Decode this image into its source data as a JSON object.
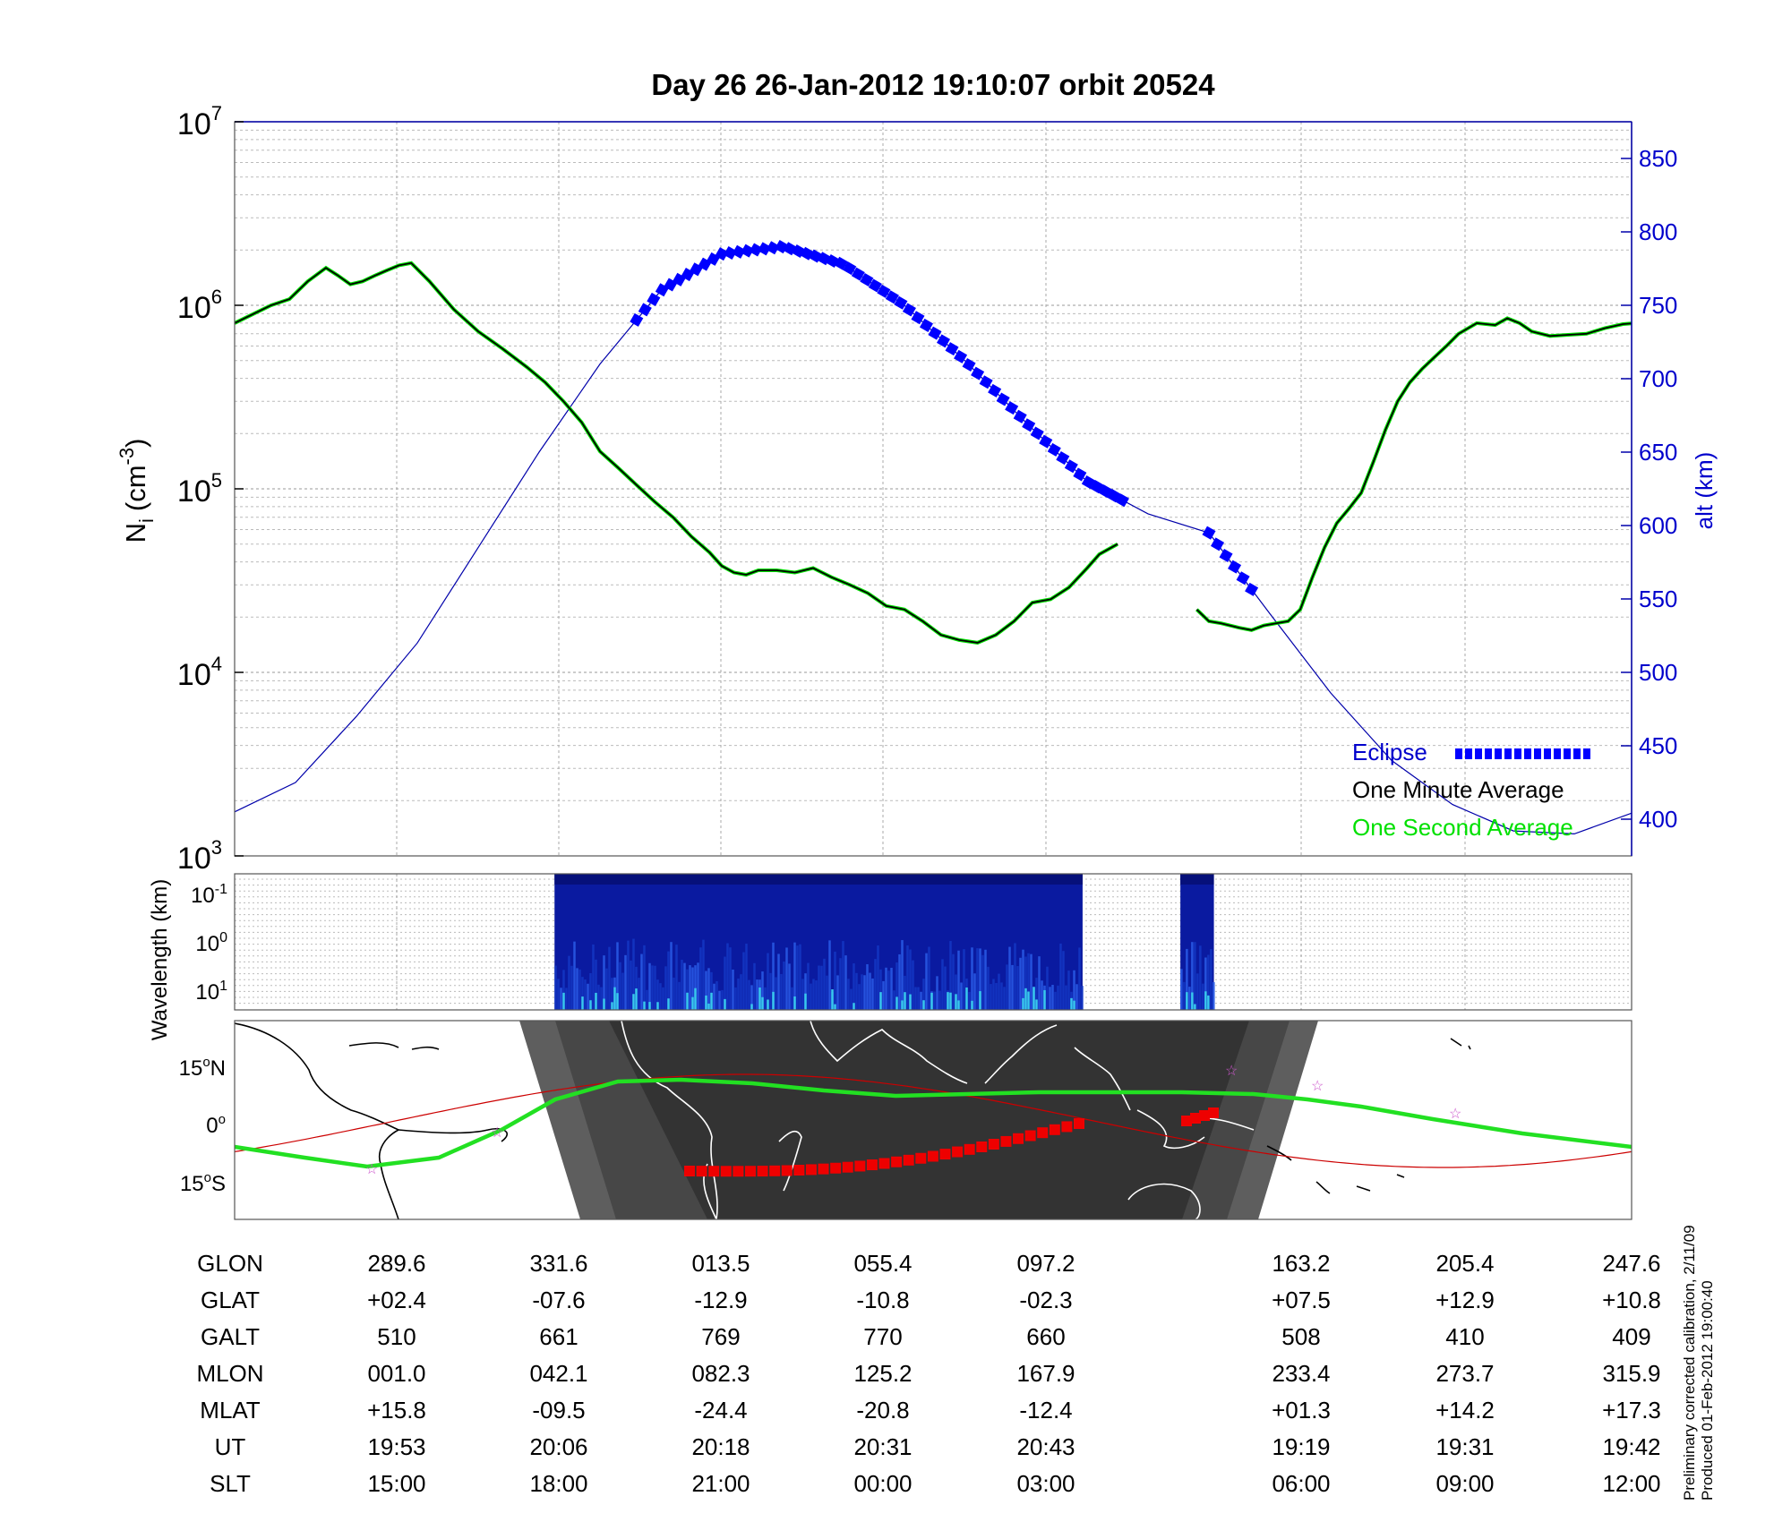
{
  "title": "Day 26  26-Jan-2012 19:10:07   orbit 20524",
  "chart_data": [
    {
      "type": "line",
      "panel": "ion density",
      "ylabel": "N_i (cm^-3)",
      "ylabel_parts": {
        "base": "N",
        "sub": "i",
        "unit": "(cm",
        "sup": "-3",
        "close": ")"
      },
      "yscale": "log",
      "ylim": [
        1000,
        10000000
      ],
      "y_ticks": [
        {
          "base": "10",
          "exp": "3"
        },
        {
          "base": "10",
          "exp": "4"
        },
        {
          "base": "10",
          "exp": "5"
        },
        {
          "base": "10",
          "exp": "6"
        },
        {
          "base": "10",
          "exp": "7"
        }
      ],
      "y2label": "alt (km)",
      "y2lim": [
        375,
        875
      ],
      "y2_ticks": [
        "400",
        "450",
        "500",
        "550",
        "600",
        "650",
        "700",
        "750",
        "800",
        "850"
      ],
      "x": "orbit fraction 0..1",
      "series": [
        {
          "name": "One Minute Average",
          "color": "#000000",
          "segments": [
            [
              [
                0.0,
                800000
              ],
              [
                0.03,
                1000000
              ],
              [
                0.045,
                1080000
              ],
              [
                0.06,
                1350000
              ],
              [
                0.075,
                1600000
              ],
              [
                0.085,
                1450000
              ],
              [
                0.095,
                1300000
              ],
              [
                0.105,
                1350000
              ],
              [
                0.115,
                1450000
              ],
              [
                0.125,
                1550000
              ],
              [
                0.135,
                1650000
              ],
              [
                0.145,
                1700000
              ],
              [
                0.16,
                1350000
              ],
              [
                0.18,
                950000
              ],
              [
                0.2,
                720000
              ],
              [
                0.22,
                580000
              ],
              [
                0.24,
                460000
              ],
              [
                0.255,
                380000
              ],
              [
                0.27,
                300000
              ],
              [
                0.285,
                230000
              ],
              [
                0.3,
                160000
              ],
              [
                0.315,
                130000
              ],
              [
                0.33,
                105000
              ],
              [
                0.345,
                85000
              ],
              [
                0.36,
                70000
              ],
              [
                0.375,
                55000
              ],
              [
                0.39,
                45000
              ],
              [
                0.4,
                38000
              ],
              [
                0.41,
                35000
              ],
              [
                0.42,
                34000
              ],
              [
                0.43,
                36000
              ],
              [
                0.445,
                36000
              ],
              [
                0.46,
                35000
              ],
              [
                0.475,
                37000
              ],
              [
                0.49,
                33000
              ],
              [
                0.505,
                30000
              ],
              [
                0.52,
                27000
              ],
              [
                0.535,
                23000
              ],
              [
                0.55,
                22000
              ],
              [
                0.565,
                19000
              ],
              [
                0.58,
                16000
              ],
              [
                0.595,
                15000
              ],
              [
                0.61,
                14500
              ],
              [
                0.625,
                16000
              ],
              [
                0.64,
                19000
              ],
              [
                0.655,
                24000
              ],
              [
                0.67,
                25000
              ],
              [
                0.685,
                29000
              ],
              [
                0.7,
                37000
              ],
              [
                0.71,
                44000
              ],
              [
                0.725,
                50000
              ]
            ],
            [
              [
                0.79,
                22000
              ],
              [
                0.8,
                19000
              ],
              [
                0.81,
                18500
              ],
              [
                0.825,
                17500
              ],
              [
                0.835,
                17000
              ],
              [
                0.845,
                18000
              ],
              [
                0.855,
                18500
              ],
              [
                0.865,
                19000
              ],
              [
                0.875,
                22000
              ],
              [
                0.885,
                33000
              ],
              [
                0.895,
                48000
              ],
              [
                0.905,
                65000
              ],
              [
                0.915,
                78000
              ],
              [
                0.925,
                95000
              ],
              [
                0.935,
                140000
              ],
              [
                0.945,
                210000
              ],
              [
                0.955,
                300000
              ],
              [
                0.965,
                380000
              ],
              [
                0.975,
                450000
              ],
              [
                0.985,
                520000
              ],
              [
                0.995,
                600000
              ],
              [
                1.005,
                700000
              ],
              [
                1.02,
                800000
              ],
              [
                1.035,
                780000
              ],
              [
                1.045,
                850000
              ],
              [
                1.055,
                800000
              ],
              [
                1.065,
                720000
              ],
              [
                1.08,
                680000
              ],
              [
                1.095,
                690000
              ],
              [
                1.11,
                700000
              ],
              [
                1.125,
                750000
              ],
              [
                1.14,
                790000
              ],
              [
                1.15,
                800000
              ]
            ]
          ]
        },
        {
          "name": "One Second Average",
          "color": "#00e000"
        }
      ],
      "altitude": {
        "color": "#0000aa",
        "points": [
          [
            0.0,
            405
          ],
          [
            0.05,
            425
          ],
          [
            0.1,
            470
          ],
          [
            0.15,
            520
          ],
          [
            0.2,
            585
          ],
          [
            0.25,
            650
          ],
          [
            0.3,
            710
          ],
          [
            0.35,
            760
          ],
          [
            0.4,
            785
          ],
          [
            0.45,
            790
          ],
          [
            0.5,
            778
          ],
          [
            0.55,
            750
          ],
          [
            0.6,
            712
          ],
          [
            0.65,
            670
          ],
          [
            0.7,
            630
          ],
          [
            0.75,
            608
          ],
          [
            0.8,
            595
          ],
          [
            0.85,
            540
          ],
          [
            0.9,
            486
          ],
          [
            0.95,
            440
          ],
          [
            1.0,
            410
          ],
          [
            1.05,
            392
          ],
          [
            1.1,
            390
          ],
          [
            1.15,
            405
          ]
        ]
      },
      "eclipse": {
        "name": "Eclipse",
        "color": "#0000ff",
        "ranges": [
          [
            0.33,
            0.73
          ],
          [
            0.8,
            0.84
          ]
        ]
      }
    },
    {
      "type": "heatmap",
      "panel": "wavelength spectrogram",
      "ylabel": "Wavelength (km)",
      "y_ticks": [
        {
          "base": "10",
          "exp": "-1"
        },
        {
          "base": "10",
          "exp": "0"
        },
        {
          "base": "10",
          "exp": "1"
        }
      ],
      "data_ranges": [
        [
          0.229,
          0.607
        ],
        [
          0.677,
          0.701
        ]
      ]
    },
    {
      "type": "map",
      "panel": "ground track",
      "y_ticks": [
        {
          "value": "15",
          "deg": "o",
          "hemi": "N"
        },
        {
          "value": "0",
          "deg": "o",
          "hemi": ""
        },
        {
          "value": "15",
          "deg": "o",
          "hemi": "S"
        }
      ]
    }
  ],
  "table": {
    "rows": [
      {
        "label": "GLON",
        "values": [
          "289.6",
          "331.6",
          "013.5",
          "055.4",
          "097.2",
          "163.2",
          "205.4",
          "247.6"
        ]
      },
      {
        "label": "GLAT",
        "values": [
          "+02.4",
          "-07.6",
          "-12.9",
          "-10.8",
          "-02.3",
          "+07.5",
          "+12.9",
          "+10.8"
        ]
      },
      {
        "label": "GALT",
        "values": [
          "510",
          "661",
          "769",
          "770",
          "660",
          "508",
          "410",
          "409"
        ]
      },
      {
        "label": "MLON",
        "values": [
          "001.0",
          "042.1",
          "082.3",
          "125.2",
          "167.9",
          "233.4",
          "273.7",
          "315.9"
        ]
      },
      {
        "label": "MLAT",
        "values": [
          "+15.8",
          "-09.5",
          "-24.4",
          "-20.8",
          "-12.4",
          "+01.3",
          "+14.2",
          "+17.3"
        ]
      },
      {
        "label": "UT",
        "values": [
          "19:53",
          "20:06",
          "20:18",
          "20:31",
          "20:43",
          "19:19",
          "19:31",
          "19:42"
        ]
      },
      {
        "label": "SLT",
        "values": [
          "15:00",
          "18:00",
          "21:00",
          "00:00",
          "03:00",
          "06:00",
          "09:00",
          "12:00"
        ]
      }
    ]
  },
  "footer": {
    "line1": "Preliminary corrected calibration, 2/11/09",
    "line2": "Produced 01-Feb-2012 19:00:40"
  }
}
